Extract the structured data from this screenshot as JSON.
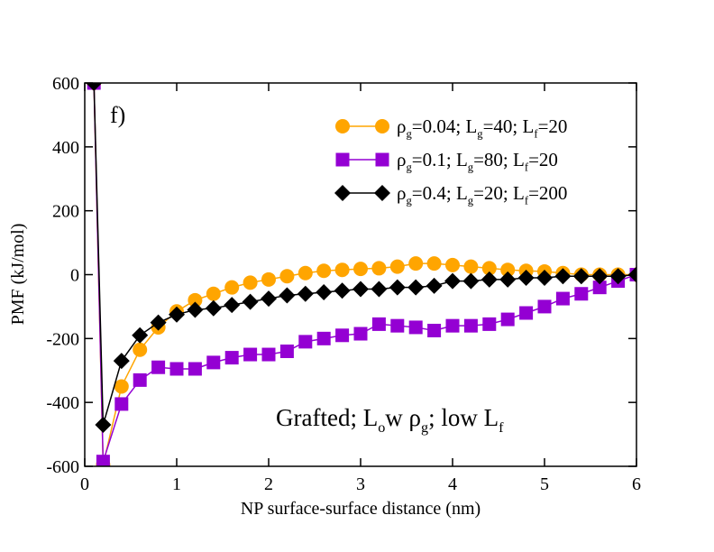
{
  "chart_data": {
    "type": "line",
    "xlabel": "NP surface-surface distance (nm)",
    "ylabel": "PMF (kJ/mol)",
    "annotations": [
      "f)",
      "Grafted; Low ρg; low Lf"
    ],
    "xlim": [
      0,
      6
    ],
    "ylim": [
      -600,
      600
    ],
    "xticks": [
      0,
      1,
      2,
      3,
      4,
      5,
      6
    ],
    "yticks": [
      -600,
      -400,
      -200,
      0,
      200,
      400,
      600
    ],
    "x": [
      0.1,
      0.2,
      0.4,
      0.6,
      0.8,
      1.0,
      1.2,
      1.4,
      1.6,
      1.8,
      2.0,
      2.2,
      2.4,
      2.6,
      2.8,
      3.0,
      3.2,
      3.4,
      3.6,
      3.8,
      4.0,
      4.2,
      4.4,
      4.6,
      4.8,
      5.0,
      5.2,
      5.4,
      5.6,
      5.8,
      6.0
    ],
    "series": [
      {
        "name": "ρg=0.04; Lg=40; Lf=20",
        "color": "#ffa500",
        "marker": "circle",
        "values": [
          600,
          -595,
          -350,
          -235,
          -165,
          -115,
          -80,
          -60,
          -40,
          -25,
          -15,
          -5,
          5,
          12,
          15,
          18,
          20,
          25,
          35,
          35,
          30,
          25,
          20,
          15,
          12,
          10,
          5,
          0,
          0,
          0,
          0
        ]
      },
      {
        "name": "ρg=0.1; Lg=80; Lf=20",
        "color": "#9400d3",
        "marker": "square",
        "values": [
          600,
          -585,
          -405,
          -330,
          -290,
          -295,
          -295,
          -275,
          -260,
          -250,
          -250,
          -240,
          -210,
          -200,
          -190,
          -185,
          -155,
          -160,
          -165,
          -175,
          -160,
          -160,
          -155,
          -140,
          -120,
          -100,
          -75,
          -60,
          -40,
          -20,
          0
        ]
      },
      {
        "name": "ρg=0.4; Lg=20; Lf=200",
        "color": "#000000",
        "marker": "diamond",
        "values": [
          600,
          -470,
          -270,
          -190,
          -150,
          -125,
          -110,
          -105,
          -95,
          -85,
          -75,
          -65,
          -60,
          -55,
          -50,
          -45,
          -45,
          -40,
          -40,
          -35,
          -20,
          -20,
          -15,
          -15,
          -10,
          -10,
          -5,
          -5,
          -5,
          -5,
          0
        ]
      }
    ]
  }
}
